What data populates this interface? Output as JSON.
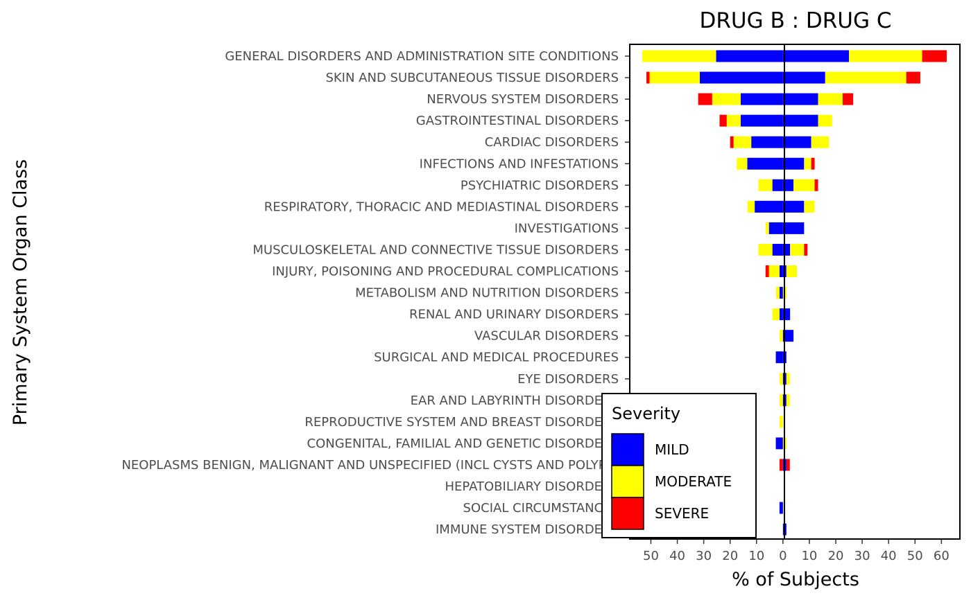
{
  "chart_data": {
    "type": "bar",
    "orientation": "horizontal-diverging",
    "title": "DRUG B : DRUG C",
    "xlabel": "% of Subjects",
    "ylabel": "Primary System Organ Class",
    "xlim": [
      -58,
      67
    ],
    "x_ticks": [
      -50,
      -40,
      -30,
      -20,
      -10,
      0,
      10,
      20,
      30,
      40,
      50,
      60
    ],
    "x_tick_labels": [
      "50",
      "40",
      "30",
      "20",
      "10",
      "0",
      "10",
      "20",
      "30",
      "40",
      "50",
      "60"
    ],
    "legend": {
      "title": "Severity",
      "position": "bottom-left inside plot",
      "items": [
        {
          "label": "MILD",
          "color": "#0000FF"
        },
        {
          "label": "MODERATE",
          "color": "#FFFF00"
        },
        {
          "label": "SEVERE",
          "color": "#FF0000"
        }
      ]
    },
    "categories": [
      "GENERAL DISORDERS AND ADMINISTRATION SITE CONDITIONS",
      "SKIN AND SUBCUTANEOUS TISSUE DISORDERS",
      "NERVOUS SYSTEM DISORDERS",
      "GASTROINTESTINAL DISORDERS",
      "CARDIAC DISORDERS",
      "INFECTIONS AND INFESTATIONS",
      "PSYCHIATRIC DISORDERS",
      "RESPIRATORY, THORACIC AND MEDIASTINAL DISORDERS",
      "INVESTIGATIONS",
      "MUSCULOSKELETAL AND CONNECTIVE TISSUE DISORDERS",
      "INJURY, POISONING AND PROCEDURAL COMPLICATIONS",
      "METABOLISM AND NUTRITION DISORDERS",
      "RENAL AND URINARY DISORDERS",
      "VASCULAR DISORDERS",
      "SURGICAL AND MEDICAL PROCEDURES",
      "EYE DISORDERS",
      "EAR AND LABYRINTH DISORDERS",
      "REPRODUCTIVE SYSTEM AND BREAST DISORDERS",
      "CONGENITAL, FAMILIAL AND GENETIC DISORDERS",
      "NEOPLASMS BENIGN, MALIGNANT AND UNSPECIFIED (INCL CYSTS AND POLYPS)",
      "HEPATOBILIARY DISORDERS",
      "SOCIAL CIRCUMSTANCES",
      "IMMUNE SYSTEM DISORDERS"
    ],
    "series": [
      {
        "name": "DRUG B",
        "side": "left",
        "mild": [
          25.3,
          31.5,
          16,
          16,
          12,
          13.5,
          4,
          10.7,
          5.3,
          4,
          1.3,
          1.3,
          1.3,
          0,
          2.7,
          0,
          0,
          0,
          2.7,
          0,
          0,
          1.3,
          0
        ],
        "moderate": [
          28,
          19,
          10.8,
          5.3,
          6.7,
          4,
          5.3,
          2.7,
          1.3,
          5.3,
          4,
          1.3,
          2.7,
          1.3,
          0,
          1.3,
          1.3,
          1.3,
          0,
          0,
          0,
          0,
          0
        ],
        "severe": [
          0,
          1.2,
          5.3,
          2.7,
          1.3,
          0,
          0,
          0,
          0,
          0,
          1.3,
          0,
          0,
          0,
          0,
          0,
          0,
          0,
          0,
          1.3,
          0,
          0,
          0
        ]
      },
      {
        "name": "DRUG C",
        "side": "right",
        "mild": [
          25,
          16,
          13.3,
          13.3,
          10.7,
          8,
          4,
          8,
          8,
          2.7,
          1.3,
          0,
          2.7,
          4,
          1.3,
          1.3,
          1.3,
          0,
          0,
          1.3,
          0,
          0,
          1.3
        ],
        "moderate": [
          27.7,
          30.7,
          9.3,
          5.3,
          6.7,
          2.7,
          8,
          4,
          0,
          5.3,
          4,
          1.3,
          0,
          0,
          0,
          1.3,
          1.3,
          0,
          1.3,
          0,
          0,
          0,
          0
        ],
        "severe": [
          9.3,
          5.3,
          4,
          0,
          0,
          1.3,
          1.3,
          0,
          0,
          1.3,
          0,
          0,
          0,
          0,
          0,
          0,
          0,
          0,
          0,
          1.3,
          0,
          0,
          0
        ]
      }
    ],
    "colors": {
      "mild": "#0000FF",
      "moderate": "#FFFF00",
      "severe": "#FF0000"
    },
    "grid": false
  }
}
